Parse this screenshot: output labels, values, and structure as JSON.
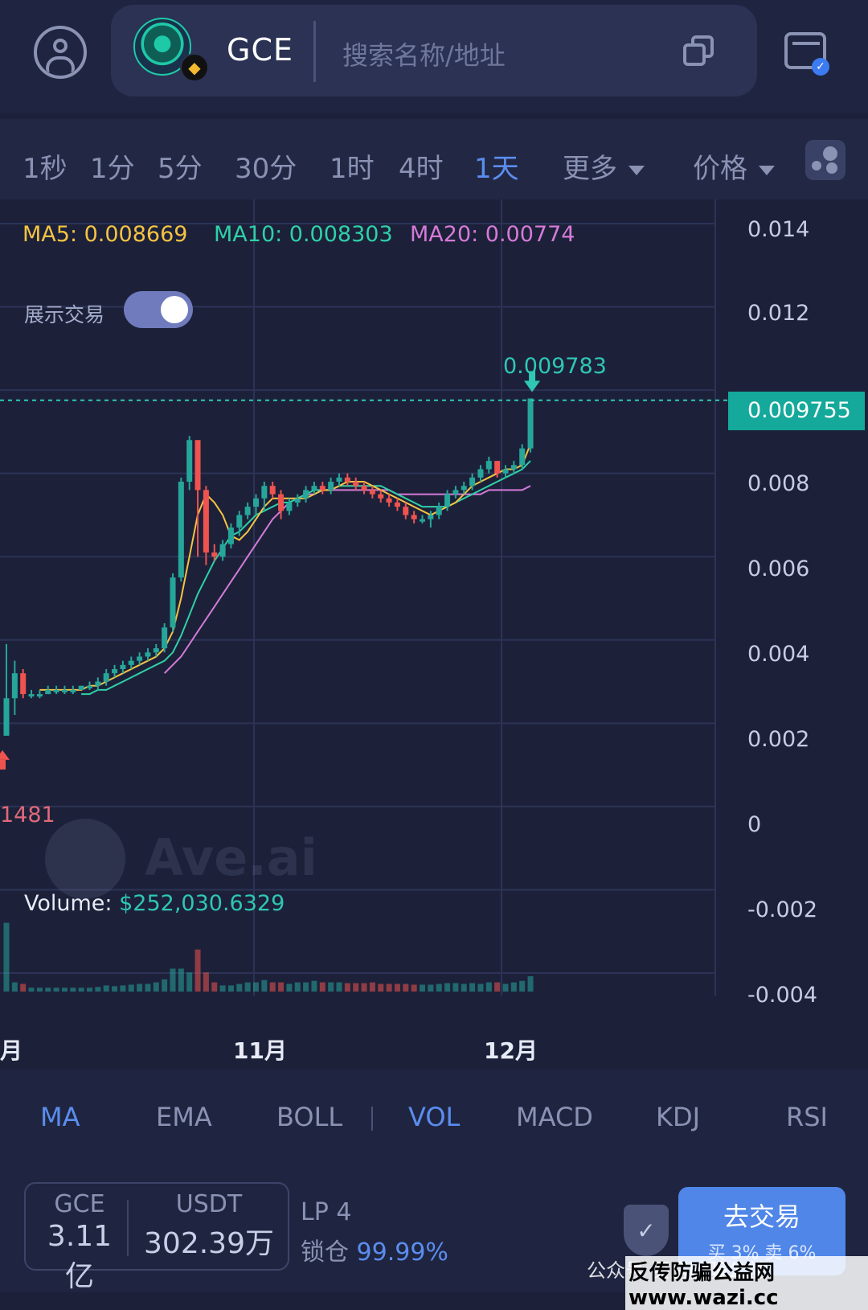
{
  "header": {
    "token_symbol": "GCE",
    "search_placeholder": "搜索名称/地址",
    "icons": [
      "user-avatar-icon",
      "token-logo-icon",
      "bnb-chain-icon",
      "copy-icon",
      "wallet-icon"
    ]
  },
  "intervals": [
    {
      "label": "1秒",
      "active": false
    },
    {
      "label": "1分",
      "active": false
    },
    {
      "label": "5分",
      "active": false
    },
    {
      "label": "30分",
      "active": false
    },
    {
      "label": "1时",
      "active": false
    },
    {
      "label": "4时",
      "active": false
    },
    {
      "label": "1天",
      "active": true
    }
  ],
  "more_dropdown": "更多",
  "price_dropdown": "价格",
  "chart": {
    "ma_legend": [
      {
        "label": "MA5: 0.008669",
        "color": "#f5c343"
      },
      {
        "label": "MA10: 0.008303",
        "color": "#2fd0a8"
      },
      {
        "label": "MA20: 0.00774",
        "color": "#d67ad8"
      }
    ],
    "toggle_label": "展示交易",
    "toggle_on": true,
    "y_axis": [
      "0.014",
      "0.012",
      "0.008",
      "0.006",
      "0.004",
      "0.002",
      "0",
      "-0.002",
      "-0.004"
    ],
    "current_price": "0.009755",
    "high_label": "0.009783",
    "low_label": "1481",
    "volume_label": "Volume:",
    "volume_value": "$252,030.6329",
    "x_axis": [
      "月",
      "11月",
      "12月"
    ],
    "watermark": "Ave.ai",
    "up_color": "#26a69a",
    "down_color": "#ef5350"
  },
  "chart_data": {
    "type": "candlestick",
    "ylim": [
      -0.004,
      0.014
    ],
    "candles": [
      {
        "o": 0.0017,
        "c": 0.0026,
        "h": 0.0039,
        "l": 0.0017
      },
      {
        "o": 0.0026,
        "c": 0.0032,
        "h": 0.0035,
        "l": 0.0022
      },
      {
        "o": 0.0032,
        "c": 0.0027,
        "h": 0.0033,
        "l": 0.0026
      },
      {
        "o": 0.0027,
        "c": 0.0027,
        "h": 0.0028,
        "l": 0.0026
      },
      {
        "o": 0.0027,
        "c": 0.0027,
        "h": 0.0028,
        "l": 0.0026
      },
      {
        "o": 0.0027,
        "c": 0.0028,
        "h": 0.0029,
        "l": 0.0027
      },
      {
        "o": 0.0028,
        "c": 0.0028,
        "h": 0.0029,
        "l": 0.0027
      },
      {
        "o": 0.0028,
        "c": 0.0028,
        "h": 0.0029,
        "l": 0.0027
      },
      {
        "o": 0.0028,
        "c": 0.0028,
        "h": 0.0029,
        "l": 0.0027
      },
      {
        "o": 0.0028,
        "c": 0.0029,
        "h": 0.0029,
        "l": 0.0028
      },
      {
        "o": 0.0029,
        "c": 0.0029,
        "h": 0.003,
        "l": 0.0028
      },
      {
        "o": 0.0029,
        "c": 0.003,
        "h": 0.0031,
        "l": 0.0028
      },
      {
        "o": 0.003,
        "c": 0.0032,
        "h": 0.0033,
        "l": 0.0029
      },
      {
        "o": 0.0032,
        "c": 0.0033,
        "h": 0.0034,
        "l": 0.0031
      },
      {
        "o": 0.0033,
        "c": 0.0034,
        "h": 0.0035,
        "l": 0.0032
      },
      {
        "o": 0.0034,
        "c": 0.0035,
        "h": 0.0036,
        "l": 0.0033
      },
      {
        "o": 0.0035,
        "c": 0.0036,
        "h": 0.0037,
        "l": 0.0034
      },
      {
        "o": 0.0036,
        "c": 0.0037,
        "h": 0.0038,
        "l": 0.0035
      },
      {
        "o": 0.0037,
        "c": 0.0038,
        "h": 0.0039,
        "l": 0.0036
      },
      {
        "o": 0.0038,
        "c": 0.0043,
        "h": 0.0044,
        "l": 0.0037
      },
      {
        "o": 0.0043,
        "c": 0.0055,
        "h": 0.0056,
        "l": 0.0042
      },
      {
        "o": 0.0055,
        "c": 0.0078,
        "h": 0.0079,
        "l": 0.0054
      },
      {
        "o": 0.0078,
        "c": 0.0088,
        "h": 0.0089,
        "l": 0.0076
      },
      {
        "o": 0.0088,
        "c": 0.0076,
        "h": 0.0088,
        "l": 0.006
      },
      {
        "o": 0.0076,
        "c": 0.0061,
        "h": 0.0077,
        "l": 0.0058
      },
      {
        "o": 0.0061,
        "c": 0.006,
        "h": 0.0063,
        "l": 0.0059
      },
      {
        "o": 0.006,
        "c": 0.0063,
        "h": 0.0064,
        "l": 0.0059
      },
      {
        "o": 0.0063,
        "c": 0.0067,
        "h": 0.0068,
        "l": 0.0062
      },
      {
        "o": 0.0067,
        "c": 0.007,
        "h": 0.0071,
        "l": 0.0065
      },
      {
        "o": 0.007,
        "c": 0.0072,
        "h": 0.0073,
        "l": 0.0069
      },
      {
        "o": 0.0072,
        "c": 0.0074,
        "h": 0.0075,
        "l": 0.007
      },
      {
        "o": 0.0074,
        "c": 0.0077,
        "h": 0.0078,
        "l": 0.0071
      },
      {
        "o": 0.0077,
        "c": 0.0075,
        "h": 0.0078,
        "l": 0.0074
      },
      {
        "o": 0.0075,
        "c": 0.0071,
        "h": 0.0076,
        "l": 0.0069
      },
      {
        "o": 0.0071,
        "c": 0.0073,
        "h": 0.0074,
        "l": 0.007
      },
      {
        "o": 0.0073,
        "c": 0.0074,
        "h": 0.0075,
        "l": 0.0072
      },
      {
        "o": 0.0074,
        "c": 0.0076,
        "h": 0.0077,
        "l": 0.0073
      },
      {
        "o": 0.0076,
        "c": 0.0077,
        "h": 0.0078,
        "l": 0.0075
      },
      {
        "o": 0.0077,
        "c": 0.0076,
        "h": 0.0078,
        "l": 0.0075
      },
      {
        "o": 0.0076,
        "c": 0.0078,
        "h": 0.0079,
        "l": 0.0075
      },
      {
        "o": 0.0078,
        "c": 0.0079,
        "h": 0.008,
        "l": 0.0077
      },
      {
        "o": 0.0079,
        "c": 0.0078,
        "h": 0.008,
        "l": 0.0077
      },
      {
        "o": 0.0078,
        "c": 0.0077,
        "h": 0.0079,
        "l": 0.0076
      },
      {
        "o": 0.0077,
        "c": 0.0076,
        "h": 0.0078,
        "l": 0.0075
      },
      {
        "o": 0.0076,
        "c": 0.0075,
        "h": 0.0077,
        "l": 0.0074
      },
      {
        "o": 0.0075,
        "c": 0.0074,
        "h": 0.0076,
        "l": 0.0073
      },
      {
        "o": 0.0074,
        "c": 0.0073,
        "h": 0.0075,
        "l": 0.0072
      },
      {
        "o": 0.0073,
        "c": 0.0072,
        "h": 0.0074,
        "l": 0.0071
      },
      {
        "o": 0.0072,
        "c": 0.007,
        "h": 0.0073,
        "l": 0.0069
      },
      {
        "o": 0.007,
        "c": 0.0069,
        "h": 0.0071,
        "l": 0.0068
      },
      {
        "o": 0.0069,
        "c": 0.0069,
        "h": 0.007,
        "l": 0.0068
      },
      {
        "o": 0.0069,
        "c": 0.007,
        "h": 0.0071,
        "l": 0.0067
      },
      {
        "o": 0.007,
        "c": 0.0072,
        "h": 0.0073,
        "l": 0.0069
      },
      {
        "o": 0.0072,
        "c": 0.0075,
        "h": 0.0076,
        "l": 0.0071
      },
      {
        "o": 0.0075,
        "c": 0.0076,
        "h": 0.0077,
        "l": 0.0074
      },
      {
        "o": 0.0076,
        "c": 0.0077,
        "h": 0.0078,
        "l": 0.0075
      },
      {
        "o": 0.0077,
        "c": 0.0079,
        "h": 0.008,
        "l": 0.0076
      },
      {
        "o": 0.0079,
        "c": 0.0081,
        "h": 0.0082,
        "l": 0.0078
      },
      {
        "o": 0.0081,
        "c": 0.0083,
        "h": 0.0084,
        "l": 0.008
      },
      {
        "o": 0.0083,
        "c": 0.008,
        "h": 0.0083,
        "l": 0.0079
      },
      {
        "o": 0.008,
        "c": 0.0081,
        "h": 0.0082,
        "l": 0.0079
      },
      {
        "o": 0.0081,
        "c": 0.0082,
        "h": 0.0083,
        "l": 0.008
      },
      {
        "o": 0.0082,
        "c": 0.0086,
        "h": 0.0087,
        "l": 0.0081
      },
      {
        "o": 0.0086,
        "c": 0.0098,
        "h": 0.0098,
        "l": 0.0085
      }
    ],
    "volumes": [
      0.9,
      0.12,
      0.1,
      0.05,
      0.05,
      0.05,
      0.05,
      0.05,
      0.05,
      0.05,
      0.05,
      0.06,
      0.08,
      0.07,
      0.08,
      0.09,
      0.1,
      0.1,
      0.12,
      0.16,
      0.3,
      0.3,
      0.25,
      0.55,
      0.25,
      0.12,
      0.08,
      0.08,
      0.1,
      0.12,
      0.12,
      0.15,
      0.12,
      0.12,
      0.1,
      0.12,
      0.12,
      0.14,
      0.12,
      0.12,
      0.12,
      0.11,
      0.11,
      0.11,
      0.12,
      0.1,
      0.1,
      0.1,
      0.1,
      0.09,
      0.09,
      0.09,
      0.1,
      0.11,
      0.11,
      0.1,
      0.11,
      0.1,
      0.12,
      0.12,
      0.1,
      0.12,
      0.14,
      0.2
    ],
    "ma5": [
      null,
      null,
      null,
      null,
      0.0028,
      0.0028,
      0.0028,
      0.0028,
      0.0028,
      0.0028,
      0.0029,
      0.0029,
      0.003,
      0.0031,
      0.0032,
      0.0033,
      0.0034,
      0.0035,
      0.0036,
      0.0038,
      0.0042,
      0.005,
      0.006,
      0.007,
      0.0075,
      0.0073,
      0.007,
      0.0065,
      0.0064,
      0.0066,
      0.0069,
      0.0072,
      0.0074,
      0.0074,
      0.0074,
      0.0074,
      0.0074,
      0.0075,
      0.0076,
      0.0076,
      0.0077,
      0.0078,
      0.0078,
      0.0078,
      0.0077,
      0.0076,
      0.0075,
      0.0074,
      0.0073,
      0.0072,
      0.0071,
      0.007,
      0.0071,
      0.0072,
      0.0073,
      0.0075,
      0.0077,
      0.0078,
      0.0079,
      0.008,
      0.0081,
      0.0081,
      0.0082,
      0.0087
    ],
    "ma10": [
      null,
      null,
      null,
      null,
      null,
      null,
      null,
      null,
      null,
      0.0027,
      0.0027,
      0.0028,
      0.0028,
      0.0029,
      0.003,
      0.0031,
      0.0032,
      0.0033,
      0.0034,
      0.0035,
      0.0037,
      0.0041,
      0.0046,
      0.0051,
      0.0055,
      0.0059,
      0.0062,
      0.0065,
      0.0066,
      0.0068,
      0.007,
      0.0071,
      0.0072,
      0.0073,
      0.0073,
      0.0074,
      0.0075,
      0.0076,
      0.0076,
      0.0076,
      0.0077,
      0.0077,
      0.0077,
      0.0077,
      0.0077,
      0.0077,
      0.0076,
      0.0075,
      0.0074,
      0.0073,
      0.0072,
      0.0072,
      0.0072,
      0.0072,
      0.0073,
      0.0074,
      0.0075,
      0.0076,
      0.0077,
      0.0078,
      0.0079,
      0.008,
      0.0081,
      0.0083
    ],
    "ma20": [
      null,
      null,
      null,
      null,
      null,
      null,
      null,
      null,
      null,
      null,
      null,
      null,
      null,
      null,
      null,
      null,
      null,
      null,
      null,
      0.0032,
      0.0034,
      0.0036,
      0.0039,
      0.0042,
      0.0045,
      0.0048,
      0.0051,
      0.0054,
      0.0057,
      0.006,
      0.0063,
      0.0066,
      0.0069,
      0.0071,
      0.0073,
      0.0074,
      0.0075,
      0.0075,
      0.0076,
      0.0076,
      0.0076,
      0.0076,
      0.0076,
      0.0076,
      0.0076,
      0.0076,
      0.0076,
      0.0075,
      0.0075,
      0.0075,
      0.0075,
      0.0075,
      0.0075,
      0.0075,
      0.0075,
      0.0075,
      0.0075,
      0.0075,
      0.0076,
      0.0076,
      0.0076,
      0.0076,
      0.0076,
      0.0077
    ]
  },
  "indicators": [
    {
      "label": "MA",
      "active": true
    },
    {
      "label": "EMA",
      "active": false
    },
    {
      "label": "BOLL",
      "active": false
    },
    {
      "label": "VOL",
      "active": true
    },
    {
      "label": "MACD",
      "active": false
    },
    {
      "label": "KDJ",
      "active": false
    },
    {
      "label": "RSI",
      "active": false
    }
  ],
  "footer": {
    "base_symbol": "GCE",
    "base_amount": "3.11亿",
    "quote_symbol": "USDT",
    "quote_amount": "302.39万",
    "lp_label": "LP 4",
    "lock_label": "锁仓",
    "lock_pct": "99.99%",
    "trade_button": "去交易",
    "trade_fee": "买 3% 卖 6%",
    "watermark_wechat": "公众号 买房防骗公益",
    "watermark_site": "反传防骗公益网 www.wazi.cc"
  }
}
